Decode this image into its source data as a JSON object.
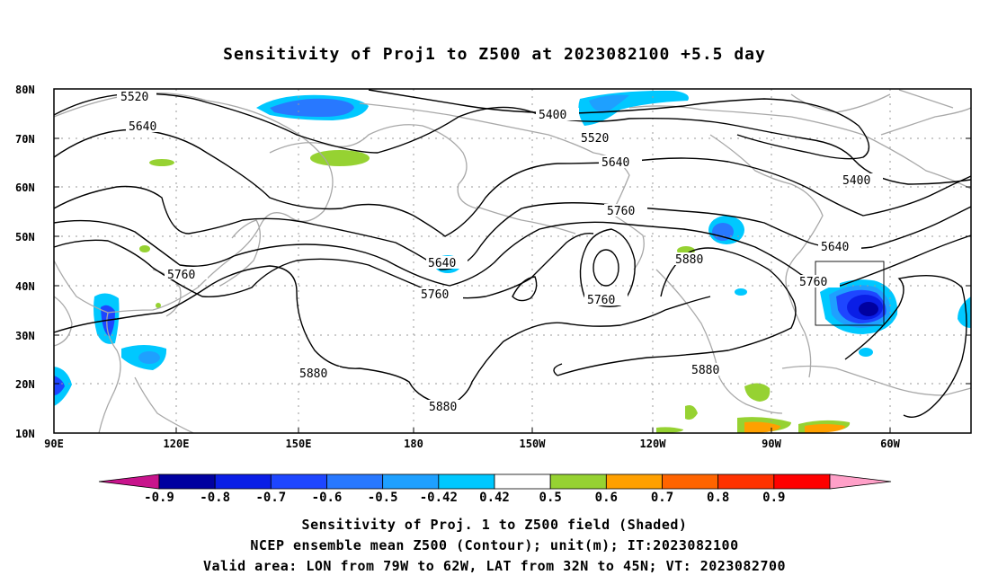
{
  "title": "Sensitivity of Proj1 to Z500 at 2023082100 +5.5 day",
  "map": {
    "lat_labels": [
      "80N",
      "70N",
      "60N",
      "50N",
      "40N",
      "30N",
      "20N",
      "10N"
    ],
    "lon_labels": [
      "90E",
      "120E",
      "150E",
      "180",
      "150W",
      "120W",
      "90W",
      "60W"
    ],
    "contour_labels": [
      {
        "text": "5520"
      },
      {
        "text": "5640"
      },
      {
        "text": "5760"
      },
      {
        "text": "5640"
      },
      {
        "text": "5760"
      },
      {
        "text": "5880"
      },
      {
        "text": "5880"
      },
      {
        "text": "5400"
      },
      {
        "text": "5520"
      },
      {
        "text": "5640"
      },
      {
        "text": "5760"
      },
      {
        "text": "5760"
      },
      {
        "text": "5880"
      },
      {
        "text": "5880"
      },
      {
        "text": "5400"
      },
      {
        "text": "5640"
      },
      {
        "text": "5760"
      }
    ],
    "valid_area": {
      "lon_from": "79W",
      "lon_to": "62W",
      "lat_from": "32N",
      "lat_to": "45N"
    }
  },
  "colorbar": {
    "labels": [
      "-0.9",
      "-0.8",
      "-0.7",
      "-0.6",
      "-0.5",
      "-0.42",
      "0.42",
      "0.5",
      "0.6",
      "0.7",
      "0.8",
      "0.9"
    ],
    "colors": [
      "#0000a0",
      "#0a1ee6",
      "#1e46ff",
      "#2878ff",
      "#1ea0ff",
      "#00c8ff",
      "#ffffff",
      "#96d232",
      "#ffa000",
      "#ff6400",
      "#ff3200",
      "#ff0000"
    ],
    "low_end_color": "#c8148c",
    "high_end_color": "#ffa0c8"
  },
  "captions": {
    "line1": "Sensitivity of Proj. 1 to Z500 field (Shaded)",
    "line2": "NCEP ensemble mean Z500 (Contour); unit(m); IT:2023082100",
    "line3": "Valid area: LON from 79W to 62W, LAT from 32N to 45N; VT: 2023082700"
  }
}
